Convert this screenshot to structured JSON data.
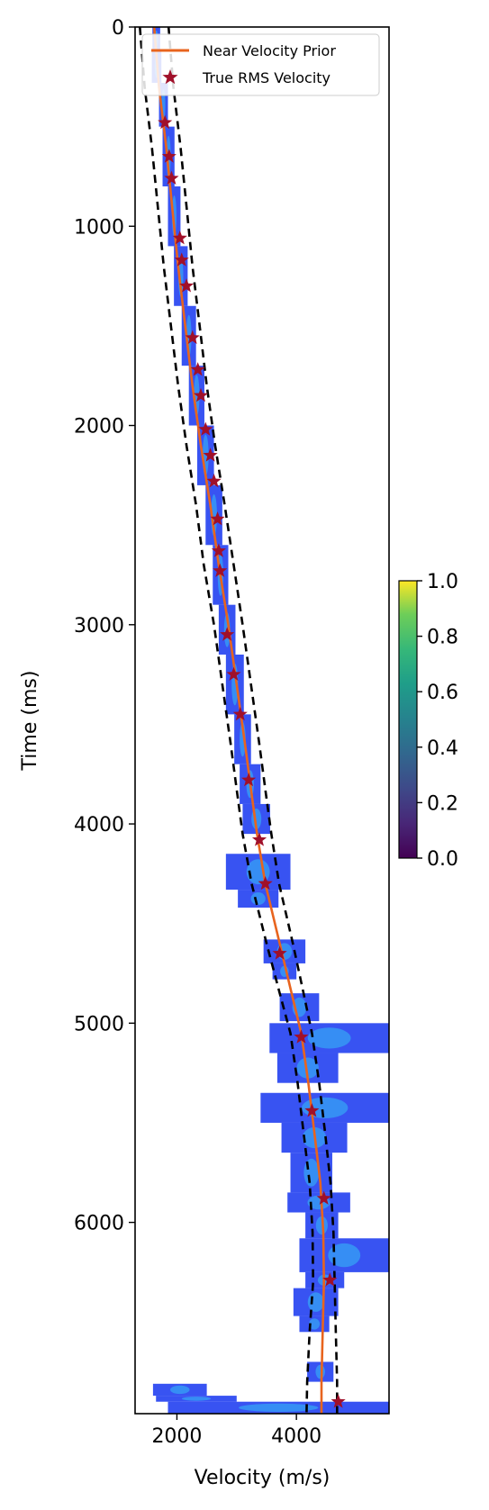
{
  "chart_data": {
    "type": "line",
    "xlabel": "Velocity (m/s)",
    "ylabel": "Time (ms)",
    "xlim": [
      1300,
      5550
    ],
    "ylim": [
      6960,
      0
    ],
    "x_ticks": [
      2000,
      4000
    ],
    "y_ticks": [
      0,
      1000,
      2000,
      3000,
      4000,
      5000,
      6000
    ],
    "legend": {
      "placement": "top-right"
    },
    "series": [
      {
        "name": "Near Velocity Prior",
        "kind": "line",
        "color": "#e8641e",
        "points": [
          [
            1620,
            0
          ],
          [
            1700,
            300
          ],
          [
            1820,
            600
          ],
          [
            1920,
            900
          ],
          [
            2020,
            1200
          ],
          [
            2140,
            1500
          ],
          [
            2260,
            1800
          ],
          [
            2400,
            2100
          ],
          [
            2560,
            2400
          ],
          [
            2700,
            2700
          ],
          [
            2860,
            3000
          ],
          [
            3000,
            3300
          ],
          [
            3140,
            3600
          ],
          [
            3250,
            3850
          ],
          [
            3340,
            4050
          ],
          [
            3480,
            4300
          ],
          [
            3720,
            4600
          ],
          [
            3920,
            4850
          ],
          [
            4080,
            5050
          ],
          [
            4200,
            5300
          ],
          [
            4300,
            5550
          ],
          [
            4400,
            5800
          ],
          [
            4450,
            6050
          ],
          [
            4460,
            6300
          ],
          [
            4440,
            6550
          ],
          [
            4420,
            6800
          ],
          [
            4420,
            6960
          ]
        ]
      },
      {
        "name": "",
        "kind": "bound-upper",
        "color": "#000000",
        "points": [
          [
            1860,
            0
          ],
          [
            1940,
            300
          ],
          [
            2060,
            600
          ],
          [
            2160,
            900
          ],
          [
            2260,
            1200
          ],
          [
            2380,
            1500
          ],
          [
            2500,
            1800
          ],
          [
            2640,
            2100
          ],
          [
            2800,
            2400
          ],
          [
            2950,
            2700
          ],
          [
            3100,
            3000
          ],
          [
            3240,
            3300
          ],
          [
            3380,
            3600
          ],
          [
            3490,
            3850
          ],
          [
            3580,
            4050
          ],
          [
            3710,
            4300
          ],
          [
            3940,
            4600
          ],
          [
            4120,
            4850
          ],
          [
            4260,
            5050
          ],
          [
            4380,
            5300
          ],
          [
            4480,
            5550
          ],
          [
            4570,
            5800
          ],
          [
            4620,
            6050
          ],
          [
            4640,
            6300
          ],
          [
            4660,
            6550
          ],
          [
            4680,
            6800
          ],
          [
            4680,
            6960
          ]
        ]
      },
      {
        "name": "",
        "kind": "bound-lower",
        "color": "#000000",
        "points": [
          [
            1380,
            0
          ],
          [
            1460,
            300
          ],
          [
            1580,
            600
          ],
          [
            1680,
            900
          ],
          [
            1780,
            1200
          ],
          [
            1900,
            1500
          ],
          [
            2020,
            1800
          ],
          [
            2160,
            2100
          ],
          [
            2320,
            2400
          ],
          [
            2450,
            2700
          ],
          [
            2620,
            3000
          ],
          [
            2760,
            3300
          ],
          [
            2900,
            3600
          ],
          [
            3010,
            3850
          ],
          [
            3100,
            4050
          ],
          [
            3250,
            4300
          ],
          [
            3500,
            4600
          ],
          [
            3720,
            4850
          ],
          [
            3900,
            5050
          ],
          [
            4020,
            5300
          ],
          [
            4120,
            5550
          ],
          [
            4220,
            5800
          ],
          [
            4270,
            6050
          ],
          [
            4280,
            6300
          ],
          [
            4220,
            6550
          ],
          [
            4180,
            6800
          ],
          [
            4170,
            6960
          ]
        ]
      },
      {
        "name": "True RMS Velocity",
        "kind": "scatter",
        "color": "#a0102a",
        "points": [
          [
            1800,
            480
          ],
          [
            1870,
            650
          ],
          [
            1910,
            760
          ],
          [
            2050,
            1060
          ],
          [
            2080,
            1170
          ],
          [
            2160,
            1300
          ],
          [
            2260,
            1560
          ],
          [
            2350,
            1720
          ],
          [
            2400,
            1850
          ],
          [
            2480,
            2020
          ],
          [
            2560,
            2150
          ],
          [
            2620,
            2280
          ],
          [
            2680,
            2470
          ],
          [
            2700,
            2630
          ],
          [
            2720,
            2730
          ],
          [
            2840,
            3050
          ],
          [
            2950,
            3250
          ],
          [
            3060,
            3450
          ],
          [
            3200,
            3780
          ],
          [
            3380,
            4080
          ],
          [
            3480,
            4300
          ],
          [
            3720,
            4650
          ],
          [
            4080,
            5070
          ],
          [
            4260,
            5440
          ],
          [
            4460,
            5880
          ],
          [
            4560,
            6290
          ],
          [
            4700,
            6900
          ]
        ]
      },
      {
        "name": "",
        "kind": "semblance",
        "color": "#1a3cff",
        "points": []
      }
    ],
    "semblance": [
      [
        1590,
        1720,
        0,
        120
      ],
      [
        1580,
        1740,
        120,
        280
      ],
      [
        1700,
        1850,
        280,
        500
      ],
      [
        1760,
        1960,
        500,
        800
      ],
      [
        1850,
        2060,
        800,
        1100
      ],
      [
        1950,
        2180,
        1100,
        1400
      ],
      [
        2080,
        2320,
        1400,
        1700
      ],
      [
        2200,
        2460,
        1700,
        2000
      ],
      [
        2340,
        2620,
        2000,
        2300
      ],
      [
        2480,
        2760,
        2300,
        2600
      ],
      [
        2600,
        2860,
        2600,
        2900
      ],
      [
        2700,
        2980,
        2900,
        3150
      ],
      [
        2820,
        3120,
        3150,
        3450
      ],
      [
        2960,
        3240,
        3450,
        3700
      ],
      [
        3050,
        3400,
        3700,
        3900
      ],
      [
        3100,
        3560,
        3900,
        4050
      ],
      [
        2820,
        3900,
        4150,
        4330
      ],
      [
        3020,
        3700,
        4330,
        4420
      ],
      [
        3450,
        4150,
        4580,
        4700
      ],
      [
        3600,
        4000,
        4700,
        4780
      ],
      [
        3720,
        4380,
        4850,
        4990
      ],
      [
        3550,
        5550,
        5000,
        5150
      ],
      [
        3680,
        4700,
        5150,
        5300
      ],
      [
        3400,
        5550,
        5350,
        5500
      ],
      [
        3750,
        4850,
        5500,
        5650
      ],
      [
        3900,
        4600,
        5650,
        5850
      ],
      [
        3850,
        4900,
        5850,
        5950
      ],
      [
        4150,
        4700,
        5950,
        6080
      ],
      [
        4050,
        5550,
        6080,
        6250
      ],
      [
        4150,
        4800,
        6250,
        6330
      ],
      [
        3950,
        4700,
        6330,
        6470
      ],
      [
        4050,
        4550,
        6470,
        6550
      ],
      [
        4180,
        4620,
        6700,
        6800
      ],
      [
        1600,
        2500,
        6810,
        6870
      ],
      [
        1650,
        3000,
        6870,
        6900
      ],
      [
        1850,
        5550,
        6900,
        6960
      ]
    ],
    "colorbar": {
      "ticks": [
        "0.0",
        "0.2",
        "0.4",
        "0.6",
        "0.8",
        "1.0"
      ]
    }
  }
}
